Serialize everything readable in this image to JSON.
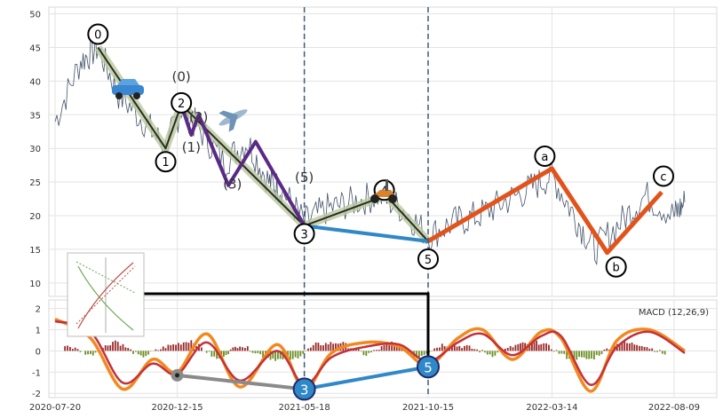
{
  "chart_data": [
    {
      "type": "line",
      "panel": "price",
      "title": "",
      "xlabel": "",
      "ylabel": "",
      "ylim": [
        8,
        51
      ],
      "yticks": [
        10,
        15,
        20,
        25,
        30,
        35,
        40,
        45,
        50
      ],
      "grid": true,
      "x_ticks": [
        "2020-07-20",
        "2020-12-15",
        "2021-05-18",
        "2021-10-15",
        "2022-03-14",
        "2022-08-09"
      ],
      "x_range": [
        "2020-07-20",
        "2022-08-22"
      ],
      "vlines": [
        "2021-05-18",
        "2021-10-15"
      ],
      "price_series": {
        "x": [
          "2020-07-20",
          "2020-08-20",
          "2020-09-10",
          "2020-10-05",
          "2020-11-05",
          "2020-12-01",
          "2020-12-20",
          "2021-01-10",
          "2021-02-10",
          "2021-03-10",
          "2021-04-05",
          "2021-04-20",
          "2021-05-18",
          "2021-06-15",
          "2021-07-15",
          "2021-08-15",
          "2021-09-15",
          "2021-10-15",
          "2021-11-15",
          "2021-12-15",
          "2022-01-15",
          "2022-02-15",
          "2022-03-14",
          "2022-04-10",
          "2022-05-05",
          "2022-06-05",
          "2022-07-05",
          "2022-08-09",
          "2022-08-22"
        ],
        "y": [
          34,
          43,
          45,
          38,
          34,
          30,
          36,
          33,
          28,
          31,
          25,
          24,
          19,
          21,
          22,
          23,
          21,
          17,
          19,
          20,
          22,
          24,
          26,
          20,
          15,
          19,
          23,
          20,
          22
        ]
      },
      "wave_labels_primary": [
        {
          "label": "0",
          "date": "2020-09-10",
          "value": 45
        },
        {
          "label": "1",
          "date": "2020-12-01",
          "value": 30
        },
        {
          "label": "2",
          "date": "2020-12-20",
          "value": 36.5
        },
        {
          "label": "3",
          "date": "2021-05-18",
          "value": 18.5
        },
        {
          "label": "4",
          "date": "2021-08-25",
          "value": 23
        },
        {
          "label": "5",
          "date": "2021-10-15",
          "value": 16.2
        },
        {
          "label": "a",
          "date": "2022-03-14",
          "value": 27
        },
        {
          "label": "b",
          "date": "2022-05-20",
          "value": 14.5
        },
        {
          "label": "c",
          "date": "2022-07-25",
          "value": 23.5
        }
      ],
      "wave_labels_sub": [
        {
          "label": "(0)",
          "date": "2020-12-20",
          "value": 40
        },
        {
          "label": "(2)",
          "date": "2021-01-10",
          "value": 34
        },
        {
          "label": "(1)",
          "date": "2021-01-01",
          "value": 29.5
        },
        {
          "label": "(3)",
          "date": "2021-02-20",
          "value": 24
        },
        {
          "label": "(5)",
          "date": "2021-05-18",
          "value": 25
        }
      ],
      "wave_lines": [
        {
          "name": "impulse",
          "color": "#2a2a2a",
          "glow": "#b9c99b",
          "points": [
            [
              "2020-09-10",
              45
            ],
            [
              "2020-12-01",
              30
            ],
            [
              "2020-12-20",
              36.5
            ],
            [
              "2021-05-18",
              18.5
            ],
            [
              "2021-08-25",
              23
            ],
            [
              "2021-10-15",
              16.2
            ]
          ]
        },
        {
          "name": "subwave",
          "color": "#5b2a86",
          "points": [
            [
              "2020-12-20",
              36.5
            ],
            [
              "2021-01-01",
              32
            ],
            [
              "2021-01-10",
              35
            ],
            [
              "2021-02-15",
              24.5
            ],
            [
              "2021-03-20",
              31
            ],
            [
              "2021-05-18",
              18.5
            ]
          ]
        },
        {
          "name": "correction",
          "color": "#e2531b",
          "points": [
            [
              "2021-10-15",
              16.2
            ],
            [
              "2022-03-14",
              27
            ],
            [
              "2022-05-20",
              14.5
            ],
            [
              "2022-07-25",
              23.5
            ]
          ]
        },
        {
          "name": "link",
          "color": "#2f88c7",
          "points": [
            [
              "2021-05-18",
              18.5
            ],
            [
              "2021-10-15",
              16.2
            ]
          ]
        }
      ],
      "icons": [
        "car-icon",
        "airplane-icon",
        "scooter-icon"
      ]
    },
    {
      "type": "bar",
      "panel": "macd",
      "title": "",
      "legend": "MACD (12,26,9)",
      "ylim": [
        -2.2,
        2.4
      ],
      "yticks": [
        -2,
        -1,
        0,
        1,
        2
      ],
      "grid": true,
      "histogram": {
        "x": [
          "2020-08-01",
          "2020-09-01",
          "2020-10-01",
          "2020-11-01",
          "2020-12-01",
          "2021-01-01",
          "2021-02-01",
          "2021-03-01",
          "2021-04-01",
          "2021-05-01",
          "2021-06-01",
          "2021-07-01",
          "2021-08-01",
          "2021-09-01",
          "2021-10-01",
          "2021-11-01",
          "2021-12-01",
          "2022-01-01",
          "2022-02-01",
          "2022-03-01",
          "2022-04-01",
          "2022-05-01",
          "2022-06-01",
          "2022-07-01",
          "2022-08-01"
        ],
        "values": [
          0.3,
          -0.2,
          0.5,
          -0.3,
          0.2,
          0.5,
          -0.4,
          0.3,
          -0.3,
          -0.5,
          0.3,
          0.4,
          -0.2,
          0.4,
          -0.3,
          0.3,
          0.2,
          -0.2,
          0.3,
          0.4,
          -0.3,
          -0.4,
          0.4,
          0.3,
          -0.2
        ]
      },
      "series": [
        {
          "name": "",
          "color": "#f2891f",
          "x": [
            "2020-07-20",
            "2020-09-01",
            "2020-10-10",
            "2020-11-15",
            "2020-12-15",
            "2021-01-20",
            "2021-03-01",
            "2021-04-15",
            "2021-05-18",
            "2021-06-20",
            "2021-08-01",
            "2021-09-10",
            "2021-10-15",
            "2021-11-20",
            "2021-12-20",
            "2022-01-25",
            "2022-03-01",
            "2022-03-25",
            "2022-04-30",
            "2022-06-01",
            "2022-07-10",
            "2022-08-22"
          ],
          "values": [
            1.5,
            0.6,
            -1.8,
            -0.4,
            -1.0,
            0.8,
            -1.7,
            0.3,
            -1.8,
            -0.1,
            0.4,
            0.2,
            -0.7,
            0.6,
            1.0,
            -0.4,
            0.9,
            0.6,
            -1.9,
            0.5,
            1.0,
            0.0
          ]
        },
        {
          "name": "",
          "color": "#c4313a",
          "x": [
            "2020-07-20",
            "2020-09-01",
            "2020-10-10",
            "2020-11-15",
            "2020-12-15",
            "2021-01-20",
            "2021-03-01",
            "2021-04-15",
            "2021-05-18",
            "2021-06-20",
            "2021-08-01",
            "2021-09-10",
            "2021-10-15",
            "2021-11-20",
            "2021-12-20",
            "2022-01-25",
            "2022-03-01",
            "2022-03-25",
            "2022-04-30",
            "2022-06-01",
            "2022-07-10",
            "2022-08-22"
          ],
          "values": [
            1.4,
            0.9,
            -1.5,
            -0.6,
            -1.1,
            0.4,
            -1.4,
            0.0,
            -1.6,
            -0.3,
            0.2,
            0.3,
            -0.5,
            0.4,
            0.8,
            -0.2,
            0.7,
            0.7,
            -1.6,
            0.2,
            0.9,
            -0.1
          ]
        }
      ],
      "wave_labels": [
        {
          "label": "3",
          "date": "2021-05-18",
          "value": -1.8
        },
        {
          "label": "5",
          "date": "2021-10-15",
          "value": -0.75
        }
      ],
      "wave_lines": [
        {
          "name": "grey",
          "color": "#8a8a8a",
          "points": [
            [
              "2020-12-15",
              -1.15
            ],
            [
              "2021-05-18",
              -1.8
            ]
          ]
        },
        {
          "name": "blue",
          "color": "#2f88c7",
          "points": [
            [
              "2021-05-18",
              -1.8
            ],
            [
              "2021-10-15",
              -0.75
            ]
          ]
        }
      ]
    }
  ]
}
